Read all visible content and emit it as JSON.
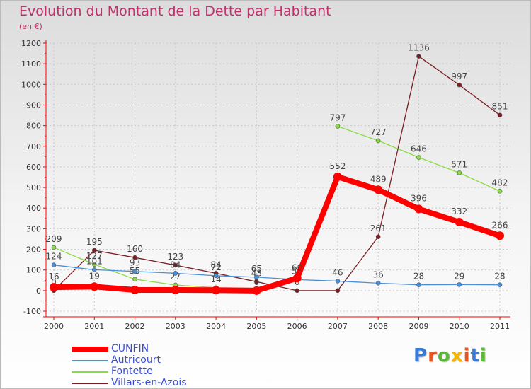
{
  "chart_data": {
    "type": "line",
    "title": "Evolution du Montant de la Dette par Habitant",
    "subtitle": "(en €)",
    "xlabel": "",
    "ylabel": "",
    "x": [
      "2000",
      "2001",
      "2002",
      "2003",
      "2004",
      "2005",
      "2006",
      "2007",
      "2008",
      "2009",
      "2010",
      "2011"
    ],
    "ylim": [
      -100,
      1200
    ],
    "yticks": [
      -100,
      0,
      100,
      200,
      300,
      400,
      500,
      600,
      700,
      800,
      900,
      1000,
      1100,
      1200
    ],
    "grid": "horizontal-dashed",
    "legend_position": "bottom-left",
    "series": [
      {
        "name": "CUNFIN",
        "color": "#ff0000",
        "values": [
          16,
          19,
          3,
          3,
          2,
          0,
          60,
          552,
          489,
          396,
          332,
          266
        ],
        "labels": [
          "16",
          "19",
          "",
          "",
          "",
          "",
          "60",
          "552",
          "489",
          "396",
          "332",
          "266"
        ]
      },
      {
        "name": "Autricourt",
        "color": "#4a90d9",
        "values": [
          124,
          101,
          93,
          84,
          72,
          65,
          53,
          46,
          36,
          28,
          29,
          28
        ],
        "labels": [
          "124",
          "101",
          "93",
          "84",
          "72",
          "65",
          "53",
          "46",
          "36",
          "28",
          "29",
          "28"
        ]
      },
      {
        "name": "Fontette",
        "color": "#88dd44",
        "values": [
          209,
          127,
          55,
          27,
          14,
          0,
          null,
          797,
          727,
          646,
          571,
          482
        ],
        "labels": [
          "209",
          "127",
          "55",
          "27",
          "14",
          "0",
          "",
          "797",
          "727",
          "646",
          "571",
          "482"
        ]
      },
      {
        "name": "Villars-en-Azois",
        "color": "#7a1e24",
        "values": [
          0,
          195,
          160,
          123,
          84,
          43,
          0,
          0,
          261,
          1136,
          997,
          851
        ],
        "labels": [
          "0",
          "195",
          "160",
          "123",
          "84",
          "43",
          "0",
          "",
          "261",
          "1136",
          "997",
          "851"
        ]
      }
    ]
  },
  "brand": {
    "text": "Proxiti",
    "colors": [
      "#3a7bd5",
      "#e8541f",
      "#5ab836",
      "#f2b400",
      "#e8541f",
      "#3a7bd5",
      "#5ab836"
    ]
  }
}
